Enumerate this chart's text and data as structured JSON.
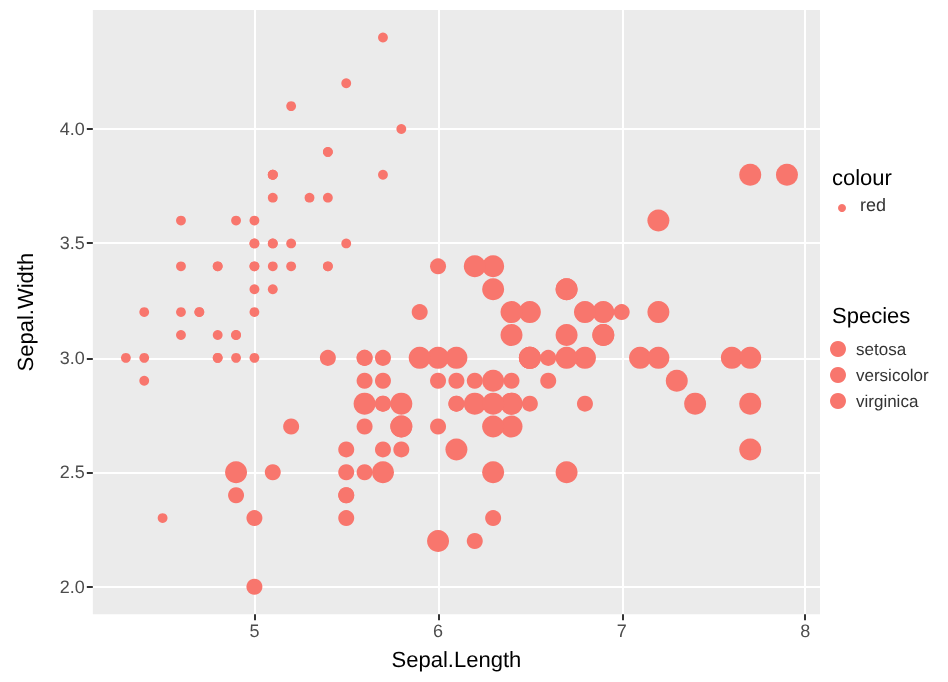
{
  "chart_data": {
    "type": "bubble",
    "xlabel": "Sepal.Length",
    "ylabel": "Sepal.Width",
    "legend_title": "Species",
    "legend": "right",
    "grid": true,
    "marker": "circle",
    "annotations": [
      "colour",
      "red"
    ],
    "xlim": [
      4.12,
      8.08
    ],
    "xticks": [
      5,
      6,
      7,
      8
    ],
    "ylim": [
      1.88,
      4.52
    ],
    "yticks": [
      {
        "value": 2,
        "label": "2.0"
      },
      {
        "value": 2.5,
        "label": "2.5"
      },
      {
        "value": 3,
        "label": "3.0"
      },
      {
        "value": 3.5,
        "label": "3.5"
      },
      {
        "value": 4,
        "label": "4.0"
      }
    ],
    "series": [
      {
        "name": "setosa",
        "color": "#f8766d",
        "sizes": [
          0.2,
          0.2,
          0.2,
          0.2,
          0.2,
          0.2,
          0.2,
          0.2,
          0.2,
          0.2,
          0.2,
          0.2,
          0.2,
          0.2,
          0.2,
          0.2,
          0.2,
          0.2,
          0.2,
          0.2,
          0.2,
          0.2,
          0.2,
          0.2,
          0.2,
          0.2,
          0.2,
          0.2,
          0.2,
          0.2,
          0.2,
          0.2,
          0.2,
          0.2,
          0.2,
          0.2,
          0.2,
          0.2,
          0.2,
          0.2,
          0.2,
          0.2,
          0.2,
          0.2,
          0.2,
          0.2,
          0.2,
          0.2,
          0.2,
          0.2
        ],
        "x": [
          5.1,
          4.9,
          4.7,
          4.6,
          5.0,
          5.4,
          4.6,
          5.0,
          4.4,
          4.9,
          5.4,
          4.8,
          4.8,
          4.3,
          5.8,
          5.7,
          5.4,
          5.1,
          5.7,
          5.1,
          5.4,
          5.1,
          4.6,
          5.1,
          4.8,
          5.0,
          5.0,
          5.2,
          5.2,
          4.7,
          4.8,
          5.4,
          5.2,
          5.5,
          4.9,
          5.0,
          5.5,
          4.9,
          4.4,
          5.1,
          5.0,
          4.5,
          4.4,
          5.0,
          5.1,
          4.8,
          5.1,
          4.6,
          5.3,
          5.0
        ],
        "values": [
          3.5,
          3.0,
          3.2,
          3.1,
          3.6,
          3.9,
          3.4,
          3.4,
          2.9,
          3.1,
          3.7,
          3.4,
          3.0,
          3.0,
          4.0,
          4.4,
          3.9,
          3.5,
          3.8,
          3.8,
          3.4,
          3.7,
          3.6,
          3.3,
          3.4,
          3.0,
          3.4,
          3.5,
          3.4,
          3.2,
          3.1,
          3.4,
          4.1,
          4.2,
          3.1,
          3.2,
          3.5,
          3.6,
          3.0,
          3.4,
          3.5,
          2.3,
          3.2,
          3.5,
          3.8,
          3.0,
          3.8,
          3.2,
          3.7,
          3.3
        ]
      },
      {
        "name": "versicolor",
        "color": "#f8766d",
        "sizes": [
          0.53,
          0.53,
          0.53,
          0.53,
          0.53,
          0.53,
          0.53,
          0.53,
          0.53,
          0.53,
          0.53,
          0.53,
          0.53,
          0.53,
          0.53,
          0.53,
          0.53,
          0.53,
          0.53,
          0.53,
          0.53,
          0.53,
          0.53,
          0.53,
          0.53,
          0.53,
          0.53,
          0.53,
          0.53,
          0.53,
          0.53,
          0.53,
          0.53,
          0.53,
          0.53,
          0.53,
          0.53,
          0.53
        ],
        "x": [
          7.0,
          5.5,
          6.5,
          5.7,
          4.9,
          6.6,
          5.2,
          5.0,
          6.1,
          5.6,
          5.6,
          6.2,
          5.6,
          5.9,
          6.1,
          6.1,
          6.4,
          6.6,
          6.8,
          6.0,
          5.7,
          5.5,
          5.5,
          6.0,
          5.4,
          6.0,
          6.3,
          5.6,
          5.5,
          5.5,
          5.8,
          5.0,
          5.6,
          5.7,
          5.7,
          6.2,
          5.1,
          5.7
        ],
        "values": [
          3.2,
          2.3,
          2.8,
          2.8,
          2.4,
          2.9,
          2.7,
          2.0,
          2.9,
          2.9,
          3.0,
          2.2,
          2.5,
          3.2,
          2.8,
          2.8,
          2.9,
          3.0,
          2.8,
          2.9,
          2.6,
          2.4,
          2.4,
          2.7,
          3.0,
          3.4,
          2.3,
          3.0,
          2.5,
          2.6,
          2.6,
          2.3,
          2.7,
          3.0,
          2.9,
          2.9,
          2.5,
          2.8
        ]
      },
      {
        "name": "virginica",
        "color": "#f8766d",
        "sizes": [
          1,
          1,
          1,
          1,
          1,
          1,
          1,
          1,
          1,
          1,
          1,
          1,
          1,
          1,
          1,
          1,
          1,
          1,
          1,
          1,
          1,
          1,
          1,
          1,
          1,
          1,
          1,
          1,
          1,
          1,
          1,
          1,
          1,
          1,
          1,
          1,
          1,
          1,
          1,
          1,
          1,
          1,
          1,
          1,
          1,
          1,
          1,
          1,
          1,
          1
        ],
        "x": [
          6.3,
          5.8,
          7.1,
          6.3,
          6.5,
          7.6,
          4.9,
          7.3,
          6.7,
          7.2,
          6.5,
          6.4,
          6.8,
          5.7,
          5.8,
          6.4,
          6.5,
          7.7,
          7.7,
          6.0,
          6.9,
          5.6,
          7.7,
          6.3,
          6.7,
          7.2,
          6.2,
          6.1,
          6.4,
          7.2,
          7.4,
          7.9,
          6.4,
          6.3,
          6.1,
          7.7,
          6.3,
          6.4,
          6.0,
          6.9,
          6.7,
          6.9,
          5.8,
          6.8,
          6.7,
          6.7,
          6.3,
          6.5,
          6.2,
          5.9
        ],
        "values": [
          3.3,
          2.7,
          3.0,
          2.9,
          3.0,
          3.0,
          2.5,
          2.9,
          2.5,
          3.6,
          3.2,
          2.7,
          3.0,
          2.5,
          2.8,
          3.2,
          3.0,
          3.8,
          2.6,
          2.2,
          3.2,
          2.8,
          2.8,
          2.7,
          3.3,
          3.2,
          2.8,
          3.0,
          2.8,
          3.0,
          2.8,
          3.8,
          2.8,
          2.8,
          2.6,
          3.0,
          3.4,
          3.1,
          3.0,
          3.1,
          3.1,
          3.1,
          2.7,
          3.2,
          3.3,
          3.0,
          2.5,
          3.0,
          3.4,
          3.0
        ]
      }
    ]
  }
}
